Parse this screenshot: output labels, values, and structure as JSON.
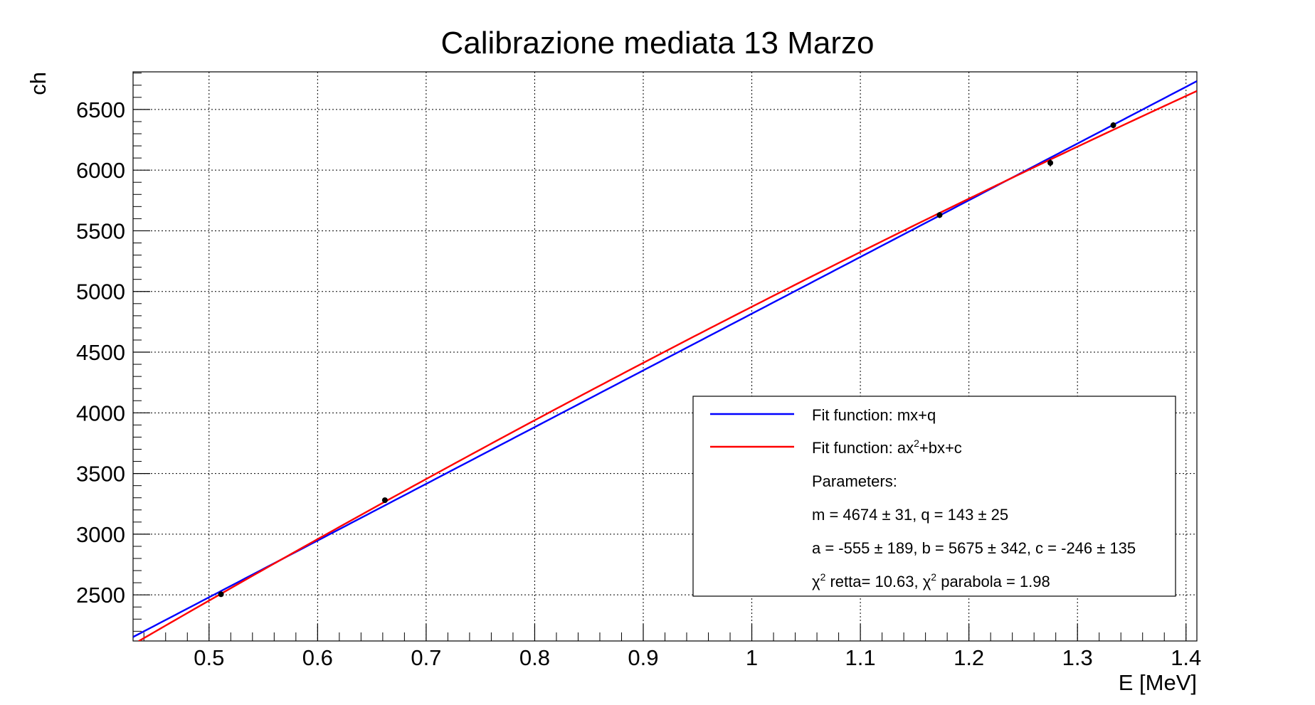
{
  "chart_data": {
    "type": "scatter",
    "title": "Calibrazione mediata 13 Marzo",
    "xlabel": "E [MeV]",
    "ylabel": "ch",
    "xlim": [
      0.43,
      1.41
    ],
    "ylim": [
      2120,
      6810
    ],
    "grid": true,
    "x_ticks": [
      0.5,
      0.6,
      0.7,
      0.8,
      0.9,
      1,
      1.1,
      1.2,
      1.3,
      1.4
    ],
    "x_tick_labels": [
      "0.5",
      "0.6",
      "0.7",
      "0.8",
      "0.9",
      "1",
      "1.1",
      "1.2",
      "1.3",
      "1.4"
    ],
    "y_ticks": [
      2500,
      3000,
      3500,
      4000,
      4500,
      5000,
      5500,
      6000,
      6500
    ],
    "y_tick_labels": [
      "2500",
      "3000",
      "3500",
      "4000",
      "4500",
      "5000",
      "5500",
      "6000",
      "6500"
    ],
    "points": {
      "x": [
        0.511,
        0.662,
        1.173,
        1.275,
        1.333
      ],
      "y": [
        2505,
        3280,
        5630,
        6060,
        6370
      ],
      "y_err": [
        15,
        15,
        25,
        30,
        25
      ],
      "color": "#000000"
    },
    "series": [
      {
        "name": "Fit function: mx+q",
        "kind": "linear",
        "params": {
          "m": 4674,
          "q": 143
        },
        "color": "#0000ff",
        "x_range": [
          0.43,
          1.41
        ]
      },
      {
        "name": "Fit function: ax2+bx+c",
        "kind": "quadratic",
        "params": {
          "a": -555,
          "b": 5675,
          "c": -246
        },
        "color": "#ff0000",
        "x_range": [
          0.435,
          1.41
        ]
      }
    ],
    "legend": {
      "placement": "bottom-right",
      "entries": [
        {
          "prefix": "Fit function: mx+q",
          "sup": "",
          "suffix": "",
          "color": "#0000ff"
        },
        {
          "prefix": "Fit function: ax",
          "sup": "2",
          "suffix": "+bx+c",
          "color": "#ff0000"
        }
      ],
      "text_lines": [
        "Parameters:",
        "m = 4674 ± 31, q = 143 ± 25",
        "a = -555 ± 189, b = 5675 ± 342, c = -246 ± 135"
      ],
      "chi_line": {
        "chi": "χ",
        "sup": "2",
        "part1": " retta= 10.63, ",
        "part2": " parabola = 1.98"
      }
    }
  }
}
